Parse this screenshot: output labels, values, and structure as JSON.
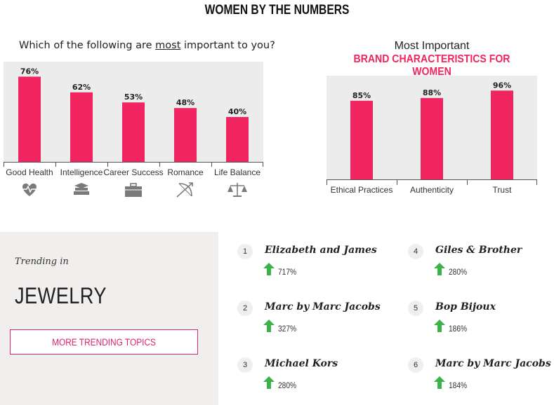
{
  "page": {
    "title": "WOMEN BY THE NUMBERS"
  },
  "chart_data": [
    {
      "type": "bar",
      "title_pre": "Which of the following are ",
      "title_em": "most",
      "title_post": " important to you?",
      "categories": [
        "Good Health",
        "Intelligence",
        "Career Success",
        "Romance",
        "Life Balance"
      ],
      "values": [
        76,
        62,
        53,
        48,
        40
      ],
      "value_labels": [
        "76%",
        "62%",
        "53%",
        "48%",
        "40%"
      ],
      "icons": [
        "heart-pulse-icon",
        "books-icon",
        "briefcase-icon",
        "cupid-arrow-icon",
        "scales-icon"
      ],
      "bar_color": "#f0245e",
      "background": "#ececec",
      "ylim": [
        0,
        100
      ]
    },
    {
      "type": "bar",
      "title_line1": "Most Important",
      "title_line2": "BRAND CHARACTERISTICS FOR WOMEN",
      "categories": [
        "Ethical Practices",
        "Authenticity",
        "Trust"
      ],
      "values": [
        85,
        88,
        96
      ],
      "value_labels": [
        "85%",
        "88%",
        "96%"
      ],
      "bar_color": "#f0245e",
      "background": "#ececec",
      "ylim": [
        0,
        100
      ]
    }
  ],
  "trending": {
    "label": "Trending in",
    "category": "JEWELRY",
    "button_label": "MORE TRENDING TOPICS",
    "arrow_color": "#3bb34a",
    "items": [
      {
        "rank": "1",
        "name": "Elizabeth and James",
        "pct": "717%"
      },
      {
        "rank": "2",
        "name": "Marc by Marc Jacobs",
        "pct": "327%"
      },
      {
        "rank": "3",
        "name": "Michael Kors",
        "pct": "280%"
      },
      {
        "rank": "4",
        "name": "Giles & Brother",
        "pct": "280%"
      },
      {
        "rank": "5",
        "name": "Bop Bijoux",
        "pct": "186%"
      },
      {
        "rank": "6",
        "name": "Marc by Marc Jacobs",
        "pct": "184%"
      }
    ]
  }
}
